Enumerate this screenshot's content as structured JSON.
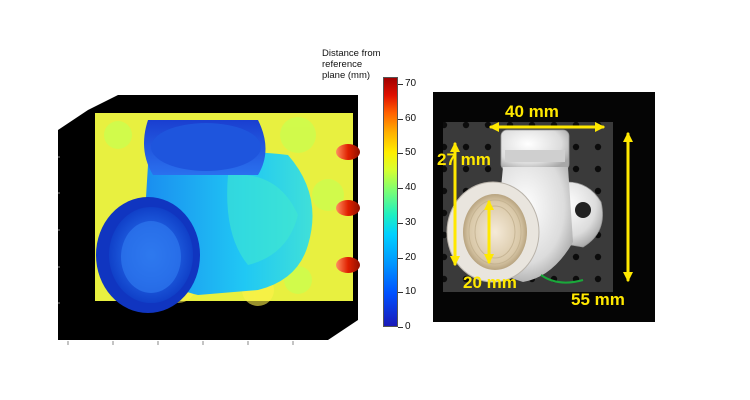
{
  "colorbar": {
    "title": "Distance from\nreference\nplane (mm)",
    "ticks": [
      "70",
      "60",
      "50",
      "40",
      "30",
      "20",
      "10",
      "0"
    ],
    "range": [
      0,
      70
    ]
  },
  "photo": {
    "dimensions": {
      "width": "40 mm",
      "height_left": "27 mm",
      "inner": "20 mm",
      "height_right": "55 mm"
    },
    "dimension_color": "#ffe800"
  }
}
